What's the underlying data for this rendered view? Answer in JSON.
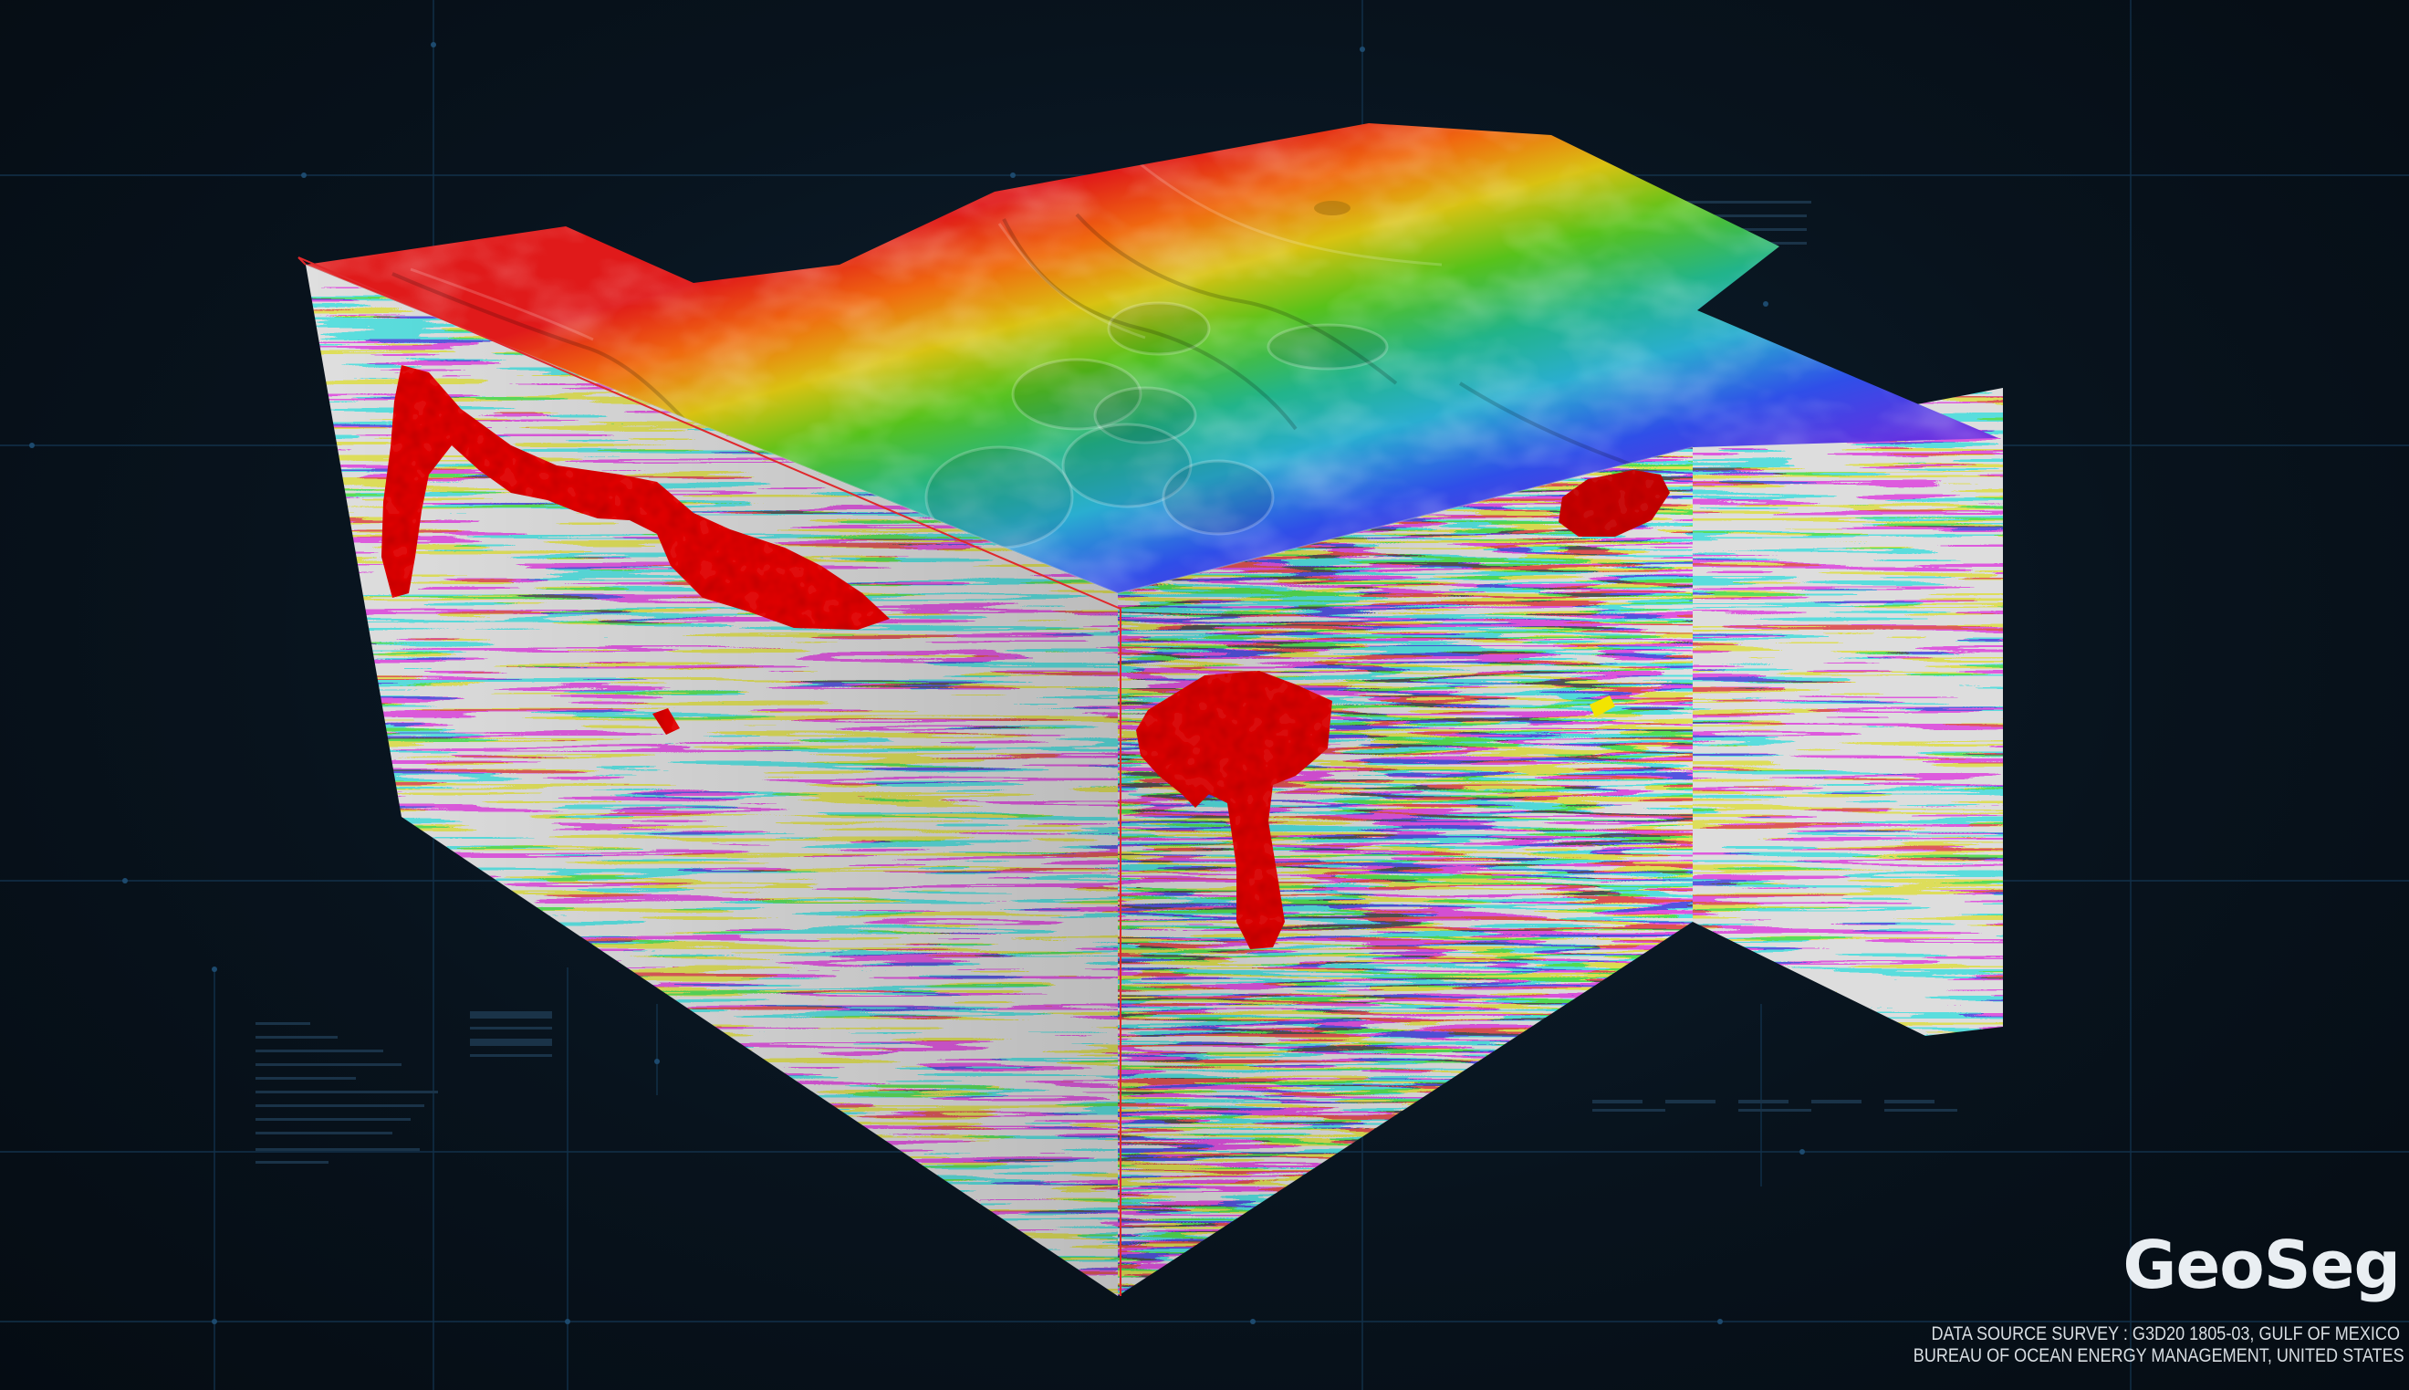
{
  "brand": {
    "logo_text": "GeoSeg",
    "source_line": "DATA SOURCE SURVEY : G3D20  1805-03, GULF OF MEXICO",
    "agency_line": "BUREAU OF OCEAN ENERGY MANAGEMENT, UNITED STATES"
  },
  "scene": {
    "subject": "3D seismic volume with bathymetric top surface and segmented red bodies",
    "colors": {
      "background": "#07121c",
      "hud_lines": "#12314a",
      "seismic_light": "#d4d4d4",
      "seismic_dark": "#1a1a1a",
      "segmented_bodies": "#e01010",
      "highlight": "#f2e400",
      "selection_outline": "#e0282b"
    }
  }
}
